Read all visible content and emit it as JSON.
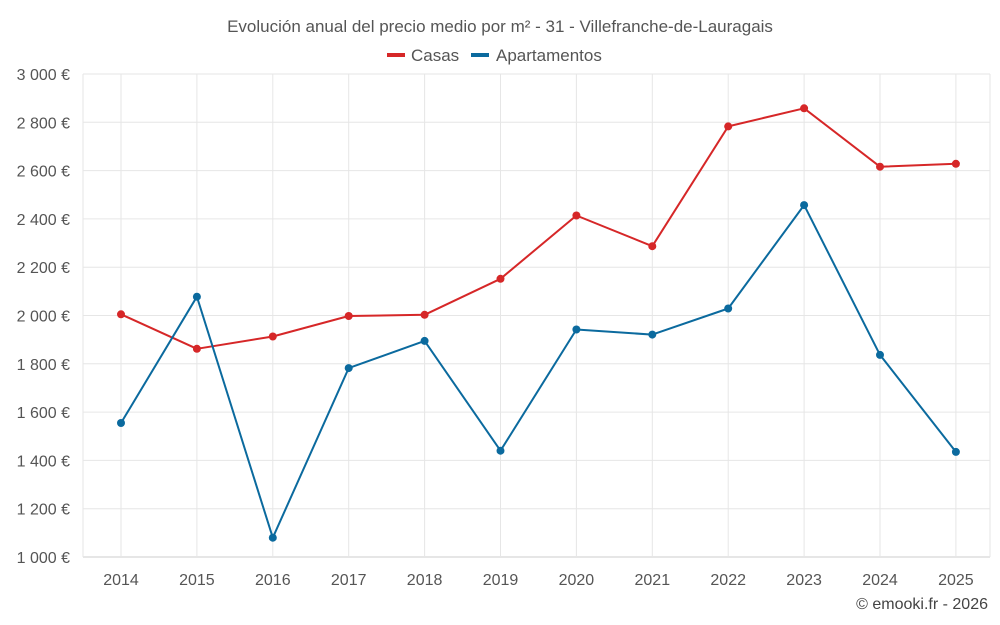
{
  "chart_data": {
    "type": "line",
    "title": "Evolución anual del precio medio por m² - 31 - Villefranche-de-Lauragais",
    "categories": [
      "2014",
      "2015",
      "2016",
      "2017",
      "2018",
      "2019",
      "2020",
      "2021",
      "2022",
      "2023",
      "2024",
      "2025"
    ],
    "series": [
      {
        "name": "Casas",
        "color": "#d62728",
        "values": [
          2005,
          1862,
          1913,
          1998,
          2003,
          2152,
          2414,
          2287,
          2783,
          2858,
          2616,
          2628
        ]
      },
      {
        "name": "Apartamentos",
        "color": "#0b6a9e",
        "values": [
          1555,
          2078,
          1080,
          1782,
          1895,
          1440,
          1942,
          1921,
          2029,
          2457,
          1837,
          1435
        ]
      }
    ],
    "ylim": [
      1000,
      3000
    ],
    "yticks": [
      1000,
      1200,
      1400,
      1600,
      1800,
      2000,
      2200,
      2400,
      2600,
      2800,
      3000
    ],
    "ytick_labels": [
      "1 000 €",
      "1 200 €",
      "1 400 €",
      "1 600 €",
      "1 800 €",
      "2 000 €",
      "2 200 €",
      "2 400 €",
      "2 600 €",
      "2 800 €",
      "3 000 €"
    ],
    "xlabel": "",
    "ylabel": "",
    "grid": true,
    "legend": "top-center"
  },
  "credit": "© emooki.fr - 2026"
}
